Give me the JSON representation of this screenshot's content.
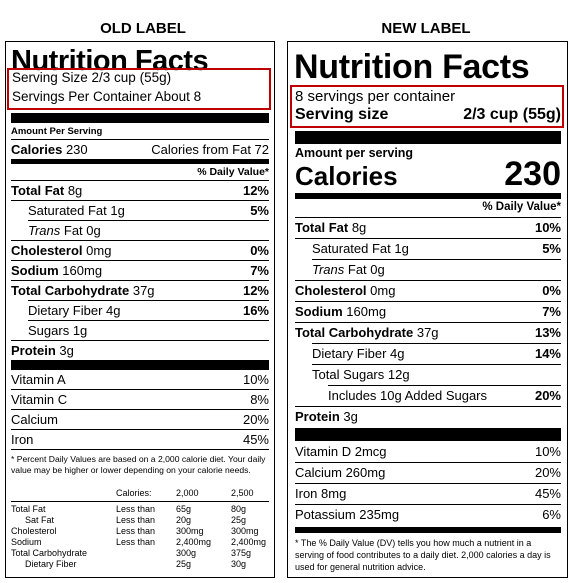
{
  "old": {
    "heading": "OLD LABEL",
    "title": "Nutrition Facts",
    "serving_size": "Serving Size 2/3 cup (55g)",
    "servings_per_container": "Servings Per Container About 8",
    "amount_per_serving": "Amount Per Serving",
    "calories_label": "Calories",
    "calories_value": "230",
    "calories_from_fat": "Calories from Fat 72",
    "dv_header": "% Daily Value*",
    "nutrients": [
      {
        "label": "Total Fat",
        "amount": "8g",
        "dv": "12%"
      },
      {
        "label": "Saturated Fat",
        "amount": "1g",
        "dv": "5%"
      },
      {
        "label": "Trans",
        "amount": "Fat 0g",
        "dv": ""
      },
      {
        "label": "Cholesterol",
        "amount": "0mg",
        "dv": "0%"
      },
      {
        "label": "Sodium",
        "amount": "160mg",
        "dv": "7%"
      },
      {
        "label": "Total Carbohydrate",
        "amount": "37g",
        "dv": "12%"
      },
      {
        "label": "Dietary Fiber",
        "amount": "4g",
        "dv": "16%"
      },
      {
        "label": "Sugars",
        "amount": "1g",
        "dv": ""
      },
      {
        "label": "Protein",
        "amount": "3g",
        "dv": ""
      }
    ],
    "vitamins": [
      {
        "label": "Vitamin A",
        "dv": "10%"
      },
      {
        "label": "Vitamin C",
        "dv": "8%"
      },
      {
        "label": "Calcium",
        "dv": "20%"
      },
      {
        "label": "Iron",
        "dv": "45%"
      }
    ],
    "footnote": "* Percent Daily Values are based on a 2,000 calorie diet. Your daily value may be higher or lower depending on your calorie needs.",
    "table_header": {
      "calories": "Calories:",
      "col1": "2,000",
      "col2": "2,500"
    },
    "table_rows": [
      {
        "label": "Total Fat",
        "cmp": "Less than",
        "v1": "65g",
        "v2": "80g"
      },
      {
        "label": "Sat Fat",
        "cmp": "Less than",
        "v1": "20g",
        "v2": "25g"
      },
      {
        "label": "Cholesterol",
        "cmp": "Less than",
        "v1": "300mg",
        "v2": "300mg"
      },
      {
        "label": "Sodium",
        "cmp": "Less than",
        "v1": "2,400mg",
        "v2": "2,400mg"
      },
      {
        "label": "Total Carbohydrate",
        "cmp": "",
        "v1": "300g",
        "v2": "375g"
      },
      {
        "label": "Dietary Fiber",
        "cmp": "",
        "v1": "25g",
        "v2": "30g"
      }
    ]
  },
  "new": {
    "heading": "NEW LABEL",
    "title": "Nutrition Facts",
    "servings_per_container": "8 servings per container",
    "serving_size_label": "Serving size",
    "serving_size_value": "2/3 cup (55g)",
    "amount_per_serving": "Amount per serving",
    "calories_label": "Calories",
    "calories_value": "230",
    "dv_header": "% Daily Value*",
    "nutrients": [
      {
        "label": "Total Fat",
        "amount": "8g",
        "dv": "10%"
      },
      {
        "label": "Saturated Fat",
        "amount": "1g",
        "dv": "5%"
      },
      {
        "label": "Trans",
        "amount": "Fat 0g",
        "dv": ""
      },
      {
        "label": "Cholesterol",
        "amount": "0mg",
        "dv": "0%"
      },
      {
        "label": "Sodium",
        "amount": "160mg",
        "dv": "7%"
      },
      {
        "label": "Total Carbohydrate",
        "amount": "37g",
        "dv": "13%"
      },
      {
        "label": "Dietary Fiber",
        "amount": "4g",
        "dv": "14%"
      },
      {
        "label": "Total Sugars",
        "amount": "12g",
        "dv": ""
      },
      {
        "label": "Includes 10g Added Sugars",
        "amount": "",
        "dv": "20%"
      },
      {
        "label": "Protein",
        "amount": "3g",
        "dv": ""
      }
    ],
    "vitamins": [
      {
        "label": "Vitamin D 2mcg",
        "dv": "10%"
      },
      {
        "label": "Calcium 260mg",
        "dv": "20%"
      },
      {
        "label": "Iron 8mg",
        "dv": "45%"
      },
      {
        "label": "Potassium 235mg",
        "dv": "6%"
      }
    ],
    "footnote": "* The % Daily Value (DV) tells you how much a nutrient in a serving of food contributes to a daily diet. 2,000 calories a day is used for general nutrition advice."
  },
  "colors": {
    "highlight": "#c00000",
    "ink": "#000000"
  }
}
